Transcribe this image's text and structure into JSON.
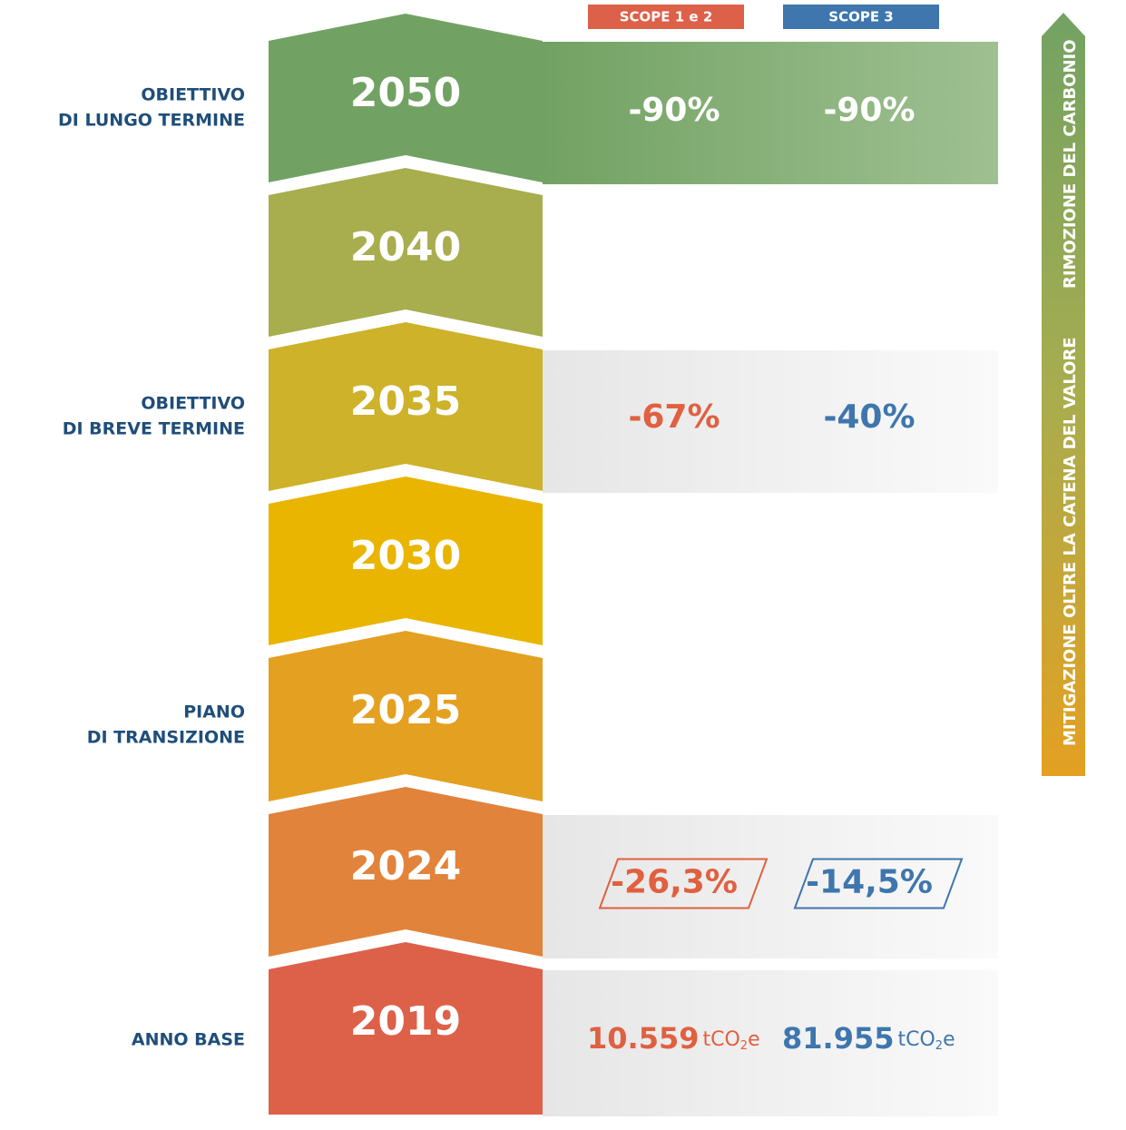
{
  "legend": {
    "scope12": "SCOPE 1 e 2",
    "scope3": "SCOPE 3"
  },
  "side_arrow": {
    "top": "RIMOZIONE DEL CARBONIO",
    "bottom": "MITIGAZIONE OLTRE LA CATENA DEL VALORE"
  },
  "rows": [
    {
      "year": "2050",
      "label": [
        "OBIETTIVO",
        "DI LUNGO TERMINE"
      ],
      "scope12": "-90%",
      "scope3": "-90%",
      "color": "#72a263"
    },
    {
      "year": "2040",
      "color": "#a8ad4e"
    },
    {
      "year": "2035",
      "label": [
        "OBIETTIVO",
        "DI BREVE TERMINE"
      ],
      "scope12": "-67%",
      "scope3": "-40%",
      "color": "#cdb22a"
    },
    {
      "year": "2030",
      "color": "#e9b500"
    },
    {
      "year": "2025",
      "label": [
        "PIANO",
        "DI TRANSIZIONE"
      ],
      "color": "#e4a021"
    },
    {
      "year": "2024",
      "scope12": "-26,3%",
      "scope3": "-14,5%",
      "boxed": true,
      "color": "#e2833b"
    },
    {
      "year": "2019",
      "label": [
        "ANNO BASE"
      ],
      "scope12": "10.559",
      "scope3": "81.955",
      "unit": [
        "tCO",
        "2",
        "e"
      ],
      "color": "#dd6049"
    }
  ]
}
